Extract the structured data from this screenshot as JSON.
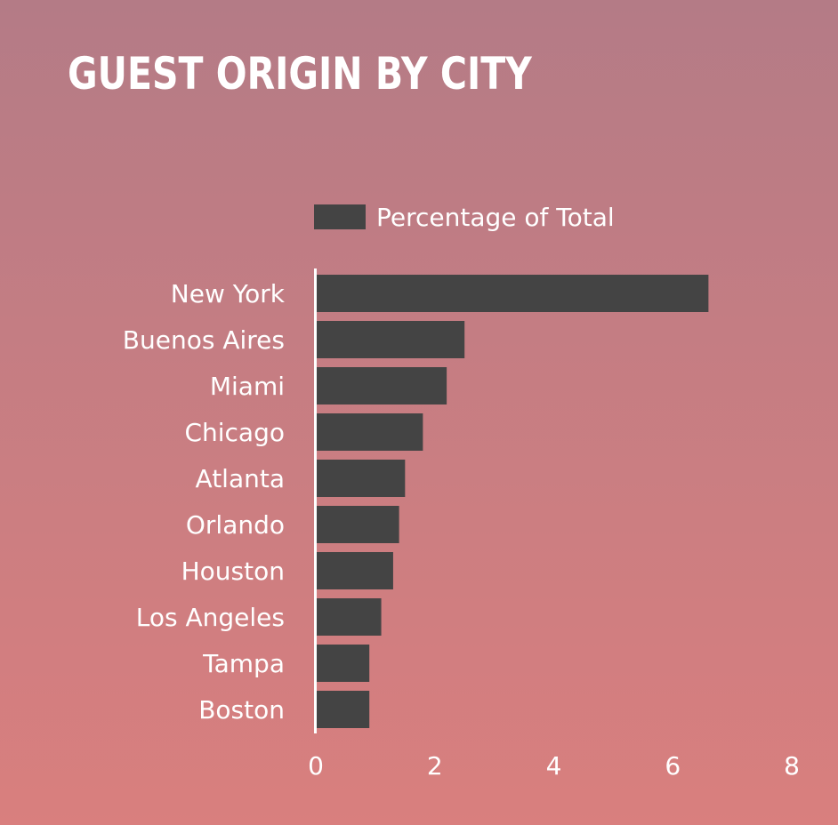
{
  "chart_data": {
    "type": "bar",
    "orientation": "horizontal",
    "title": "GUEST ORIGIN BY CITY",
    "categories": [
      "New York",
      "Buenos Aires",
      "Miami",
      "Chicago",
      "Atlanta",
      "Orlando",
      "Houston",
      "Los Angeles",
      "Tampa",
      "Boston"
    ],
    "series": [
      {
        "name": "Percentage of Total",
        "values": [
          6.6,
          2.5,
          2.2,
          1.8,
          1.5,
          1.4,
          1.3,
          1.1,
          0.9,
          0.9
        ],
        "color": "#444444"
      }
    ],
    "xlim": [
      0,
      8
    ],
    "xticks": [
      "0",
      "2",
      "4",
      "6",
      "8"
    ],
    "xlabel": "",
    "ylabel": "",
    "grid": false,
    "legend_position": "top"
  },
  "colors": {
    "background_top": "#b47b86",
    "background_bottom": "#d97f7e",
    "bar": "#444444",
    "text": "#ffffff"
  }
}
